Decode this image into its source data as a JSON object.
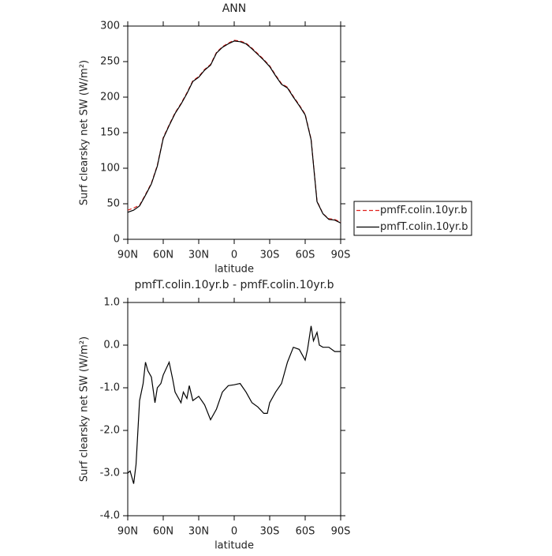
{
  "chart_data": [
    {
      "type": "line",
      "title": "ANN",
      "xlabel": "latitude",
      "ylabel": "Surf clearsky net SW (W/m²)",
      "x": [
        90,
        85,
        80,
        75,
        70,
        65,
        60,
        55,
        50,
        45,
        40,
        35,
        30,
        25,
        20,
        15,
        10,
        5,
        0,
        -5,
        -10,
        -15,
        -20,
        -25,
        -30,
        -35,
        -40,
        -45,
        -50,
        -55,
        -60,
        -65,
        -70,
        -75,
        -80,
        -85,
        -90
      ],
      "xlim": [
        90,
        -90
      ],
      "xticks": [
        {
          "value": 90,
          "label": "90N"
        },
        {
          "value": 60,
          "label": "60N"
        },
        {
          "value": 30,
          "label": "30N"
        },
        0,
        {
          "value": -30,
          "label": "30S"
        },
        {
          "value": -60,
          "label": "60S"
        },
        {
          "value": -90,
          "label": "90S"
        }
      ],
      "ylim": [
        0,
        300
      ],
      "yticks": [
        0,
        50,
        100,
        150,
        200,
        250,
        300
      ],
      "legend": "right",
      "series": [
        {
          "name": "pmfF.colin.10yr.b",
          "color": "#e0201c",
          "style": "dashed",
          "values": [
            41,
            44,
            48,
            63,
            79,
            104,
            143,
            161,
            178,
            191,
            206,
            223,
            229,
            239,
            246,
            263,
            271,
            276,
            280,
            279,
            276,
            269,
            261,
            253,
            244,
            231,
            219,
            214,
            201,
            189,
            176,
            141,
            54,
            36,
            29,
            28,
            24
          ]
        },
        {
          "name": "pmfT.colin.10yr.b",
          "color": "#000000",
          "style": "solid",
          "values": [
            38,
            41,
            47,
            62,
            78,
            103,
            142,
            160,
            177,
            190,
            205,
            222,
            228,
            238,
            245,
            262,
            270,
            275,
            279,
            278,
            275,
            268,
            260,
            252,
            243,
            230,
            218,
            213,
            200,
            188,
            175,
            140,
            53,
            36,
            28,
            27,
            23
          ]
        }
      ]
    },
    {
      "type": "line",
      "title": "pmfT.colin.10yr.b - pmfF.colin.10yr.b",
      "xlabel": "latitude",
      "ylabel": "Surf clearsky net SW (W/m²)",
      "x": [
        90,
        88,
        85,
        83,
        80,
        77,
        75,
        73,
        70,
        67,
        65,
        62,
        60,
        55,
        52,
        50,
        45,
        43,
        40,
        38,
        35,
        30,
        25,
        20,
        15,
        10,
        5,
        0,
        -5,
        -10,
        -15,
        -20,
        -25,
        -28,
        -30,
        -35,
        -40,
        -45,
        -50,
        -55,
        -60,
        -62,
        -65,
        -67,
        -70,
        -72,
        -75,
        -80,
        -85,
        -90
      ],
      "xlim": [
        90,
        -90
      ],
      "xticks": [
        {
          "value": 90,
          "label": "90N"
        },
        {
          "value": 60,
          "label": "60N"
        },
        {
          "value": 30,
          "label": "30N"
        },
        0,
        {
          "value": -30,
          "label": "30S"
        },
        {
          "value": -60,
          "label": "60S"
        },
        {
          "value": -90,
          "label": "90S"
        }
      ],
      "ylim": [
        -4,
        1
      ],
      "yticks": [
        {
          "value": -4,
          "label": "-4.0"
        },
        {
          "value": -3,
          "label": "-3.0"
        },
        {
          "value": -2,
          "label": "-2.0"
        },
        {
          "value": -1,
          "label": "-1.0"
        },
        {
          "value": 0,
          "label": "0.0"
        },
        {
          "value": 1,
          "label": "1.0"
        }
      ],
      "series": [
        {
          "color": "#000000",
          "style": "solid",
          "values": [
            -3.0,
            -2.95,
            -3.25,
            -2.8,
            -1.3,
            -0.9,
            -0.4,
            -0.6,
            -0.75,
            -1.35,
            -1.0,
            -0.9,
            -0.7,
            -0.4,
            -0.8,
            -1.1,
            -1.35,
            -1.1,
            -1.25,
            -0.95,
            -1.3,
            -1.2,
            -1.4,
            -1.75,
            -1.5,
            -1.1,
            -0.95,
            -0.93,
            -0.9,
            -1.1,
            -1.35,
            -1.45,
            -1.6,
            -1.6,
            -1.35,
            -1.1,
            -0.9,
            -0.4,
            -0.05,
            -0.1,
            -0.35,
            -0.1,
            0.45,
            0.1,
            0.3,
            0.0,
            -0.05,
            -0.05,
            -0.15,
            -0.15
          ]
        }
      ]
    }
  ]
}
